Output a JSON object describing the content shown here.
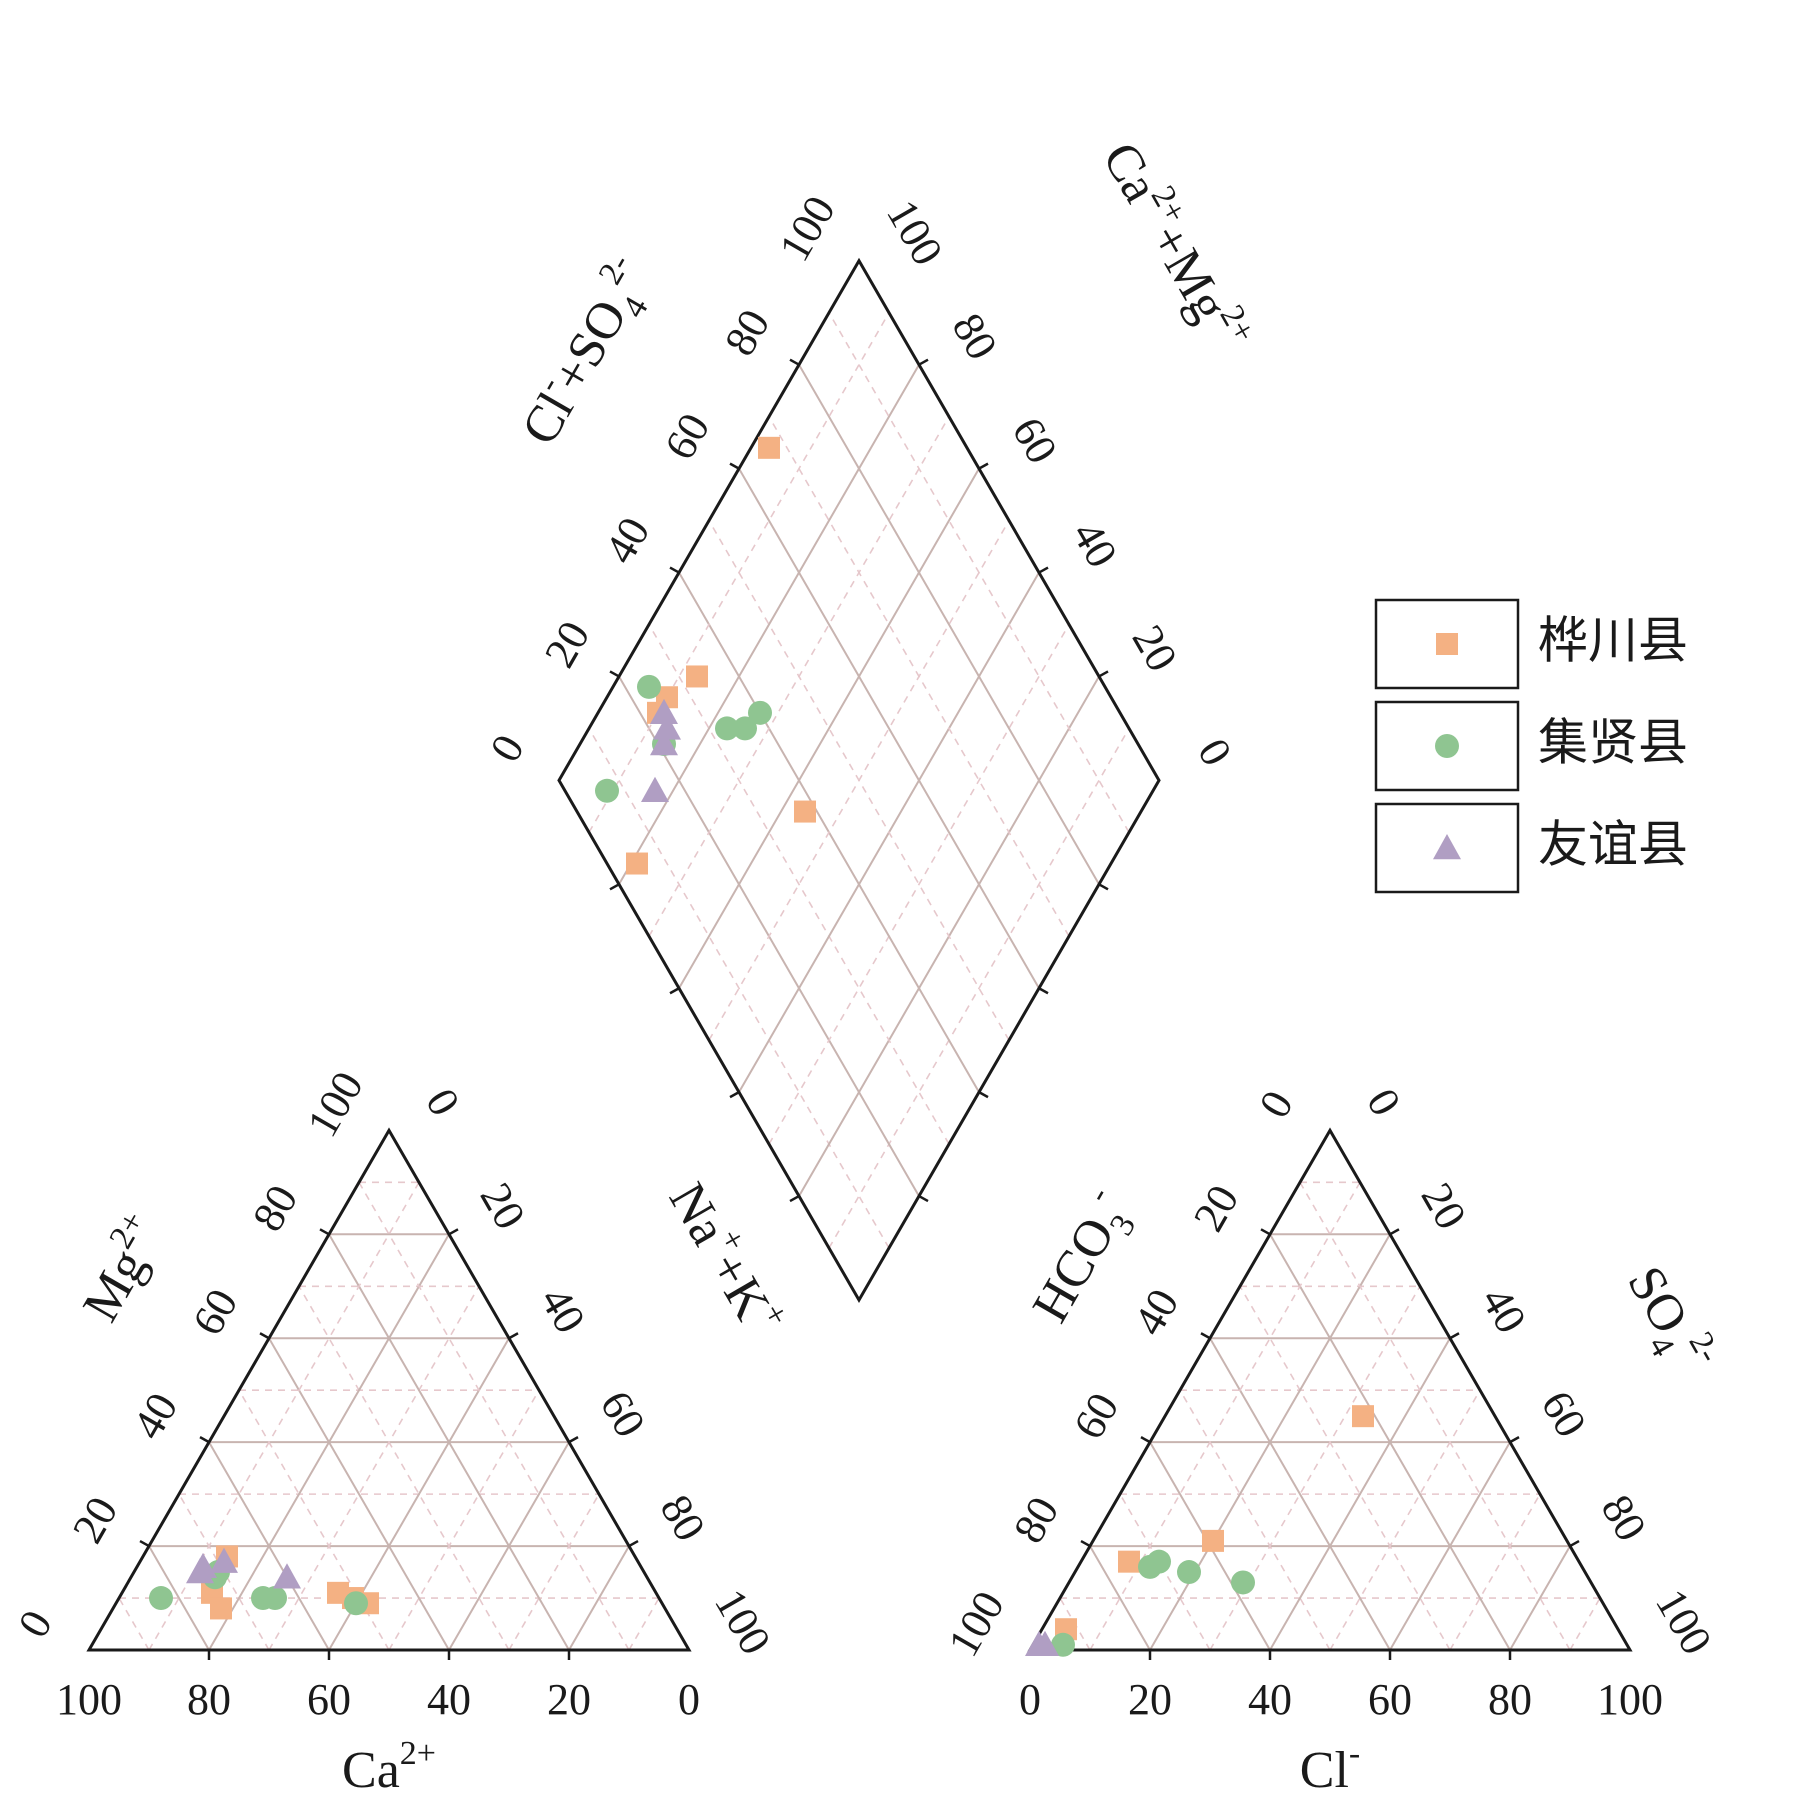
{
  "chart_data": {
    "type": "scatter",
    "subtype": "piper-diagram",
    "legend": {
      "placement": "right",
      "entries": [
        {
          "name": "桦川县",
          "marker": "square",
          "color": "#f4b183"
        },
        {
          "name": "集贤县",
          "marker": "circle",
          "color": "#8fc591"
        },
        {
          "name": "友谊县",
          "marker": "triangle",
          "color": "#b09ec3"
        }
      ]
    },
    "cation_triangle": {
      "labels": {
        "bottom": "Ca2+",
        "left": "Mg2+",
        "right": "Na++K+"
      },
      "bottom_ticks": [
        "100",
        "80",
        "60",
        "40",
        "20",
        "0"
      ],
      "left_ticks": [
        "0",
        "20",
        "40",
        "60",
        "80",
        "100"
      ],
      "right_ticks": [
        "0",
        "20",
        "40",
        "60",
        "80",
        "100"
      ],
      "grid": true,
      "series": [
        {
          "name": "桦川县",
          "points": [
            {
              "ca": 68,
              "mg": 18,
              "nak": 14
            },
            {
              "ca": 74,
              "mg": 11,
              "nak": 15
            },
            {
              "ca": 74,
              "mg": 8,
              "nak": 18
            },
            {
              "ca": 53,
              "mg": 11,
              "nak": 36
            },
            {
              "ca": 51,
              "mg": 10,
              "nak": 39
            },
            {
              "ca": 49,
              "mg": 9,
              "nak": 42
            }
          ]
        },
        {
          "name": "集贤县",
          "points": [
            {
              "ca": 83,
              "mg": 10,
              "nak": 7
            },
            {
              "ca": 72,
              "mg": 14,
              "nak": 14
            },
            {
              "ca": 71,
              "mg": 15,
              "nak": 14
            },
            {
              "ca": 66,
              "mg": 10,
              "nak": 24
            },
            {
              "ca": 64,
              "mg": 10,
              "nak": 26
            },
            {
              "ca": 51,
              "mg": 9,
              "nak": 40
            }
          ]
        },
        {
          "name": "友谊县",
          "points": [
            {
              "ca": 74,
              "mg": 15,
              "nak": 11
            },
            {
              "ca": 73,
              "mg": 16,
              "nak": 11
            },
            {
              "ca": 69,
              "mg": 17,
              "nak": 14
            },
            {
              "ca": 60,
              "mg": 14,
              "nak": 26
            }
          ]
        }
      ]
    },
    "anion_triangle": {
      "labels": {
        "bottom": "Cl-",
        "left": "HCO3-",
        "right": "SO42-"
      },
      "bottom_ticks": [
        "0",
        "20",
        "40",
        "60",
        "80",
        "100"
      ],
      "left_ticks": [
        "100",
        "80",
        "60",
        "40",
        "20",
        "0"
      ],
      "right_ticks": [
        "0",
        "20",
        "40",
        "60",
        "80",
        "100"
      ],
      "grid": true,
      "series": [
        {
          "name": "桦川县",
          "points": [
            {
              "cl": 4,
              "so4": 4,
              "hco3": 92
            },
            {
              "cl": 8,
              "so4": 17,
              "hco3": 75
            },
            {
              "cl": 20,
              "so4": 21,
              "hco3": 59
            },
            {
              "cl": 33,
              "so4": 45,
              "hco3": 22
            }
          ]
        },
        {
          "name": "集贤县",
          "points": [
            {
              "cl": 5,
              "so4": 1,
              "hco3": 94
            },
            {
              "cl": 12,
              "so4": 16,
              "hco3": 72
            },
            {
              "cl": 13,
              "so4": 17,
              "hco3": 70
            },
            {
              "cl": 19,
              "so4": 15,
              "hco3": 66
            },
            {
              "cl": 29,
              "so4": 13,
              "hco3": 58
            }
          ]
        },
        {
          "name": "友谊县",
          "points": [
            {
              "cl": 1,
              "so4": 1,
              "hco3": 98
            },
            {
              "cl": 2,
              "so4": 1,
              "hco3": 97
            }
          ]
        }
      ]
    },
    "diamond": {
      "labels": {
        "left": "Cl-+SO42-",
        "right": "Ca2++Mg2+"
      },
      "left_ticks": [
        "0",
        "20",
        "40",
        "60",
        "80",
        "100"
      ],
      "right_ticks": [
        "0",
        "20",
        "40",
        "60",
        "80",
        "100"
      ],
      "grid": true,
      "series": [
        {
          "name": "桦川县",
          "points": [
            {
              "clso4": 67,
              "camg": 97
            },
            {
              "clso4": 38,
              "camg": 56
            },
            {
              "clso4": 33,
              "camg": 87
            },
            {
              "clso4": 26,
              "camg": 90
            },
            {
              "clso4": 23,
              "camg": 90
            },
            {
              "clso4": 5,
              "camg": 79
            }
          ]
        },
        {
          "name": "集贤县",
          "points": [
            {
              "clso4": 40,
              "camg": 73
            },
            {
              "clso4": 36,
              "camg": 74
            },
            {
              "clso4": 33,
              "camg": 77
            },
            {
              "clso4": 24,
              "camg": 94
            },
            {
              "clso4": 21,
              "camg": 86
            },
            {
              "clso4": 7,
              "camg": 91
            }
          ]
        },
        {
          "name": "友谊县",
          "points": [
            {
              "clso4": 24,
              "camg": 89
            },
            {
              "clso4": 23,
              "camg": 87
            },
            {
              "clso4": 21,
              "camg": 86
            },
            {
              "clso4": 15,
              "camg": 83
            }
          ]
        }
      ]
    }
  }
}
